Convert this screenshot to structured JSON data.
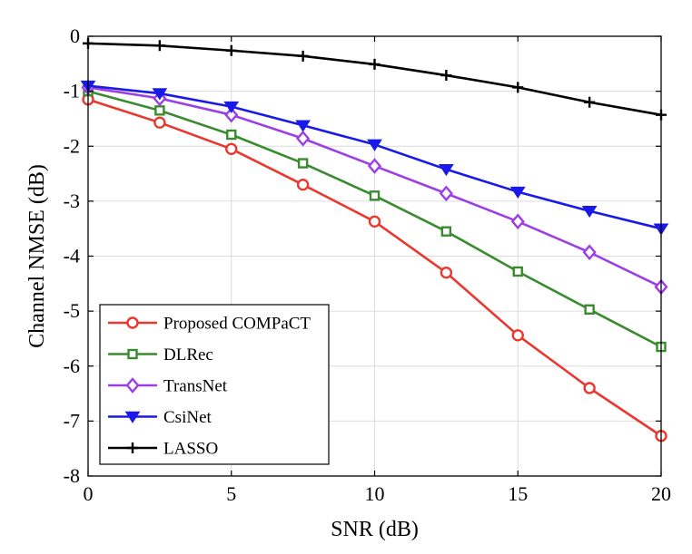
{
  "chart_data": {
    "type": "line",
    "title": "",
    "xlabel": "SNR (dB)",
    "ylabel": "Channel NMSE (dB)",
    "xlim": [
      0,
      20
    ],
    "ylim": [
      -8,
      0
    ],
    "xticks": [
      0,
      5,
      10,
      15,
      20
    ],
    "yticks": [
      0,
      -1,
      -2,
      -3,
      -4,
      -5,
      -6,
      -7,
      -8
    ],
    "xtick_labels": [
      "0",
      "5",
      "10",
      "15",
      "20"
    ],
    "ytick_labels": [
      "0",
      "-1",
      "-2",
      "-3",
      "-4",
      "-5",
      "-6",
      "-7",
      "-8"
    ],
    "grid": true,
    "legend_position": "bottom-left",
    "x": [
      0,
      2.5,
      5,
      7.5,
      10,
      12.5,
      15,
      17.5,
      20
    ],
    "series": [
      {
        "name": "Proposed COMPaCT",
        "color": "#e8382f",
        "marker": "circle",
        "values": [
          -1.15,
          -1.57,
          -2.05,
          -2.7,
          -3.37,
          -4.3,
          -5.44,
          -6.4,
          -7.27
        ]
      },
      {
        "name": "DLRec",
        "color": "#3a8a2f",
        "marker": "square",
        "values": [
          -1.0,
          -1.35,
          -1.79,
          -2.31,
          -2.9,
          -3.55,
          -4.28,
          -4.97,
          -5.65
        ]
      },
      {
        "name": "TransNet",
        "color": "#9c3ee6",
        "marker": "diamond",
        "values": [
          -0.93,
          -1.13,
          -1.43,
          -1.86,
          -2.36,
          -2.86,
          -3.37,
          -3.93,
          -4.56
        ]
      },
      {
        "name": "CsiNet",
        "color": "#1a1ae8",
        "marker": "triangle-down",
        "values": [
          -0.9,
          -1.04,
          -1.28,
          -1.62,
          -1.97,
          -2.42,
          -2.83,
          -3.18,
          -3.5
        ]
      },
      {
        "name": "LASSO",
        "color": "#000000",
        "marker": "plus",
        "values": [
          -0.13,
          -0.17,
          -0.26,
          -0.36,
          -0.51,
          -0.71,
          -0.93,
          -1.2,
          -1.43
        ]
      }
    ]
  }
}
